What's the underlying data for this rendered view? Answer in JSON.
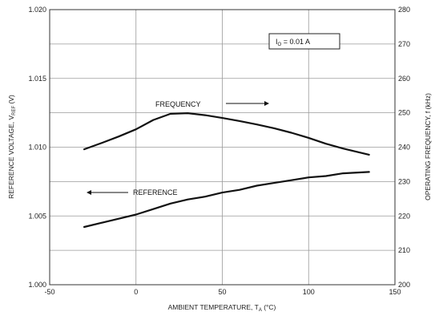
{
  "chart_data": {
    "type": "line",
    "xlabel": {
      "main": "AMBIENT TEMPERATURE, T",
      "sub": "A",
      "unit": " (°C)"
    },
    "ylabel_left": {
      "main": "REFERENCE VOLTAGE, V",
      "sub": "REF",
      "unit": " (V)"
    },
    "ylabel_right": "OPERATING FREQUENCY, f (kHz)",
    "xlim": [
      -50,
      150
    ],
    "x_ticks": [
      "-50",
      "0",
      "50",
      "100",
      "150"
    ],
    "ylim_left": [
      1.0,
      1.02
    ],
    "y_ticks_left": [
      "1.000",
      "1.005",
      "1.010",
      "1.015",
      "1.020"
    ],
    "ylim_right": [
      200,
      280
    ],
    "y_ticks_right": [
      "200",
      "210",
      "220",
      "230",
      "240",
      "250",
      "260",
      "270",
      "280"
    ],
    "grid": true,
    "condition": {
      "main": "I",
      "sub": "O",
      "rest": " = 0.01 A"
    },
    "series": [
      {
        "name": "FREQUENCY",
        "axis": "right",
        "x": [
          -30,
          -20,
          -10,
          0,
          10,
          20,
          30,
          40,
          50,
          60,
          70,
          80,
          90,
          100,
          110,
          120,
          135
        ],
        "values": [
          239.4,
          241.2,
          243.1,
          245.2,
          247.9,
          249.7,
          249.9,
          249.3,
          248.5,
          247.6,
          246.6,
          245.5,
          244.2,
          242.7,
          241.0,
          239.6,
          237.8
        ]
      },
      {
        "name": "REFERENCE",
        "axis": "left",
        "x": [
          -30,
          -20,
          -10,
          0,
          10,
          20,
          30,
          40,
          50,
          60,
          70,
          80,
          90,
          100,
          110,
          120,
          135
        ],
        "values": [
          1.0042,
          1.0045,
          1.0048,
          1.0051,
          1.0055,
          1.0059,
          1.0062,
          1.0064,
          1.0067,
          1.0069,
          1.0072,
          1.0074,
          1.0076,
          1.0078,
          1.0079,
          1.0081,
          1.0082
        ]
      }
    ],
    "annotations": [
      {
        "text": "FREQUENCY",
        "arrow": "right"
      },
      {
        "text": "REFERENCE",
        "arrow": "left"
      }
    ]
  }
}
